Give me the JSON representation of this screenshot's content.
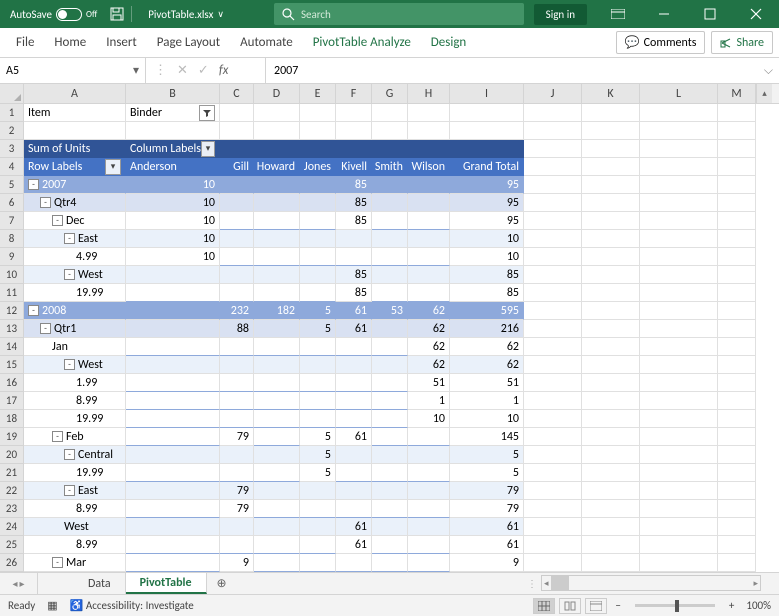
{
  "titlebar": {
    "autosave_label": "AutoSave",
    "autosave_state": "Off",
    "filename": "PivotTable.xlsx",
    "search_placeholder": "Search",
    "signin": "Sign in"
  },
  "ribbon": {
    "tabs": [
      "File",
      "Home",
      "Insert",
      "Page Layout",
      "Automate",
      "PivotTable Analyze",
      "Design"
    ],
    "comments": "Comments",
    "share": "Share"
  },
  "formulabar": {
    "namebox": "A5",
    "formula": "2007"
  },
  "columns": [
    "A",
    "B",
    "C",
    "D",
    "E",
    "F",
    "G",
    "H",
    "I",
    "J",
    "K",
    "L",
    "M"
  ],
  "pivot": {
    "filter_field": "Item",
    "filter_value": "Binder",
    "values_label": "Sum of Units",
    "col_label": "Column Labels",
    "row_label": "Row Labels",
    "col_headers": [
      "Anderson",
      "Gill",
      "Howard",
      "Jones",
      "Kivell",
      "Smith",
      "Wilson",
      "Grand Total"
    ]
  },
  "rows": [
    {
      "n": 1,
      "cells": [
        {
          "c": "A",
          "v": "Item"
        },
        {
          "c": "B",
          "v": "Binder",
          "filter": true
        }
      ]
    },
    {
      "n": 2,
      "cells": []
    },
    {
      "n": 3,
      "style": "hdr",
      "cells": [
        {
          "c": "A",
          "v": "Sum of Units",
          "cls": "hdr-dark"
        },
        {
          "c": "B",
          "v": "Column Labels",
          "cls": "hdr-dark",
          "dd": true
        }
      ],
      "fill": "hdr-dark",
      "fillcols": [
        "C",
        "D",
        "E",
        "F",
        "G",
        "H",
        "I"
      ]
    },
    {
      "n": 4,
      "style": "hdr2",
      "cells": [
        {
          "c": "A",
          "v": "Row Labels",
          "cls": "hdr-mid",
          "dd": true
        },
        {
          "c": "B",
          "v": "Anderson",
          "cls": "hdr-mid"
        },
        {
          "c": "C",
          "v": "Gill",
          "cls": "hdr-mid r"
        },
        {
          "c": "D",
          "v": "Howard",
          "cls": "hdr-mid r"
        },
        {
          "c": "E",
          "v": "Jones",
          "cls": "hdr-mid r"
        },
        {
          "c": "F",
          "v": "Kivell",
          "cls": "hdr-mid r"
        },
        {
          "c": "G",
          "v": "Smith",
          "cls": "hdr-mid r"
        },
        {
          "c": "H",
          "v": "Wilson",
          "cls": "hdr-mid r"
        },
        {
          "c": "I",
          "v": "Grand Total",
          "cls": "hdr-mid r"
        }
      ]
    },
    {
      "n": 5,
      "style": "year",
      "cells": [
        {
          "c": "A",
          "v": "2007",
          "exp": "-",
          "ind": 0
        },
        {
          "c": "B",
          "v": "10",
          "r": true
        },
        {
          "c": "F",
          "v": "85",
          "r": true
        },
        {
          "c": "I",
          "v": "95",
          "r": true
        }
      ],
      "fill": "year-row",
      "fillcols": [
        "C",
        "D",
        "E",
        "G",
        "H"
      ]
    },
    {
      "n": 6,
      "style": "lt1",
      "cells": [
        {
          "c": "A",
          "v": "Qtr4",
          "exp": "-",
          "ind": 1
        },
        {
          "c": "B",
          "v": "10",
          "r": true
        },
        {
          "c": "F",
          "v": "85",
          "r": true
        },
        {
          "c": "I",
          "v": "95",
          "r": true
        }
      ],
      "fillcols": [
        "C",
        "D",
        "E",
        "G",
        "H"
      ],
      "fill": "lt1"
    },
    {
      "n": 7,
      "cells": [
        {
          "c": "A",
          "v": "Dec",
          "exp": "-",
          "ind": 2
        },
        {
          "c": "B",
          "v": "10",
          "r": true
        },
        {
          "c": "F",
          "v": "85",
          "r": true
        },
        {
          "c": "I",
          "v": "95",
          "r": true
        }
      ],
      "pv": true
    },
    {
      "n": 8,
      "style": "lt2",
      "cells": [
        {
          "c": "A",
          "v": "East",
          "exp": "-",
          "ind": 3
        },
        {
          "c": "B",
          "v": "10",
          "r": true
        },
        {
          "c": "I",
          "v": "10",
          "r": true
        }
      ],
      "fillcols": [
        "C",
        "D",
        "E",
        "F",
        "G",
        "H"
      ],
      "fill": "lt2"
    },
    {
      "n": 9,
      "cells": [
        {
          "c": "A",
          "v": "4.99",
          "r": false,
          "ind": 4
        },
        {
          "c": "B",
          "v": "10",
          "r": true
        },
        {
          "c": "I",
          "v": "10",
          "r": true
        }
      ],
      "pv": true
    },
    {
      "n": 10,
      "style": "lt2",
      "cells": [
        {
          "c": "A",
          "v": "West",
          "exp": "-",
          "ind": 3
        },
        {
          "c": "F",
          "v": "85",
          "r": true
        },
        {
          "c": "I",
          "v": "85",
          "r": true
        }
      ],
      "fillcols": [
        "B",
        "C",
        "D",
        "E",
        "G",
        "H"
      ],
      "fill": "lt2"
    },
    {
      "n": 11,
      "cells": [
        {
          "c": "A",
          "v": "19.99",
          "ind": 4
        },
        {
          "c": "F",
          "v": "85",
          "r": true
        },
        {
          "c": "I",
          "v": "85",
          "r": true
        }
      ],
      "pv": true
    },
    {
      "n": 12,
      "style": "year",
      "cells": [
        {
          "c": "A",
          "v": "2008",
          "exp": "-",
          "ind": 0
        },
        {
          "c": "C",
          "v": "232",
          "r": true
        },
        {
          "c": "D",
          "v": "182",
          "r": true
        },
        {
          "c": "E",
          "v": "5",
          "r": true
        },
        {
          "c": "F",
          "v": "61",
          "r": true
        },
        {
          "c": "G",
          "v": "53",
          "r": true
        },
        {
          "c": "H",
          "v": "62",
          "r": true
        },
        {
          "c": "I",
          "v": "595",
          "r": true
        }
      ],
      "fill": "year-row",
      "fillcols": [
        "B"
      ]
    },
    {
      "n": 13,
      "style": "lt1",
      "cells": [
        {
          "c": "A",
          "v": "Qtr1",
          "exp": "-",
          "ind": 1
        },
        {
          "c": "C",
          "v": "88",
          "r": true
        },
        {
          "c": "E",
          "v": "5",
          "r": true
        },
        {
          "c": "F",
          "v": "61",
          "r": true
        },
        {
          "c": "H",
          "v": "62",
          "r": true
        },
        {
          "c": "I",
          "v": "216",
          "r": true
        }
      ],
      "fillcols": [
        "B",
        "D",
        "G"
      ],
      "fill": "lt1"
    },
    {
      "n": 14,
      "cells": [
        {
          "c": "A",
          "v": "Jan",
          "ind": 2
        },
        {
          "c": "H",
          "v": "62",
          "r": true
        },
        {
          "c": "I",
          "v": "62",
          "r": true
        }
      ],
      "pv": true
    },
    {
      "n": 15,
      "style": "lt2",
      "cells": [
        {
          "c": "A",
          "v": "West",
          "exp": "-",
          "ind": 3
        },
        {
          "c": "H",
          "v": "62",
          "r": true
        },
        {
          "c": "I",
          "v": "62",
          "r": true
        }
      ],
      "fillcols": [
        "B",
        "C",
        "D",
        "E",
        "F",
        "G"
      ],
      "fill": "lt2"
    },
    {
      "n": 16,
      "cells": [
        {
          "c": "A",
          "v": "1.99",
          "ind": 4
        },
        {
          "c": "H",
          "v": "51",
          "r": true
        },
        {
          "c": "I",
          "v": "51",
          "r": true
        }
      ],
      "pv": true
    },
    {
      "n": 17,
      "cells": [
        {
          "c": "A",
          "v": "8.99",
          "ind": 4
        },
        {
          "c": "H",
          "v": "1",
          "r": true
        },
        {
          "c": "I",
          "v": "1",
          "r": true
        }
      ],
      "pv": true
    },
    {
      "n": 18,
      "cells": [
        {
          "c": "A",
          "v": "19.99",
          "ind": 4
        },
        {
          "c": "H",
          "v": "10",
          "r": true
        },
        {
          "c": "I",
          "v": "10",
          "r": true
        }
      ],
      "pv": true
    },
    {
      "n": 19,
      "cells": [
        {
          "c": "A",
          "v": "Feb",
          "exp": "-",
          "ind": 2
        },
        {
          "c": "C",
          "v": "79",
          "r": true
        },
        {
          "c": "E",
          "v": "5",
          "r": true
        },
        {
          "c": "F",
          "v": "61",
          "r": true
        },
        {
          "c": "I",
          "v": "145",
          "r": true
        }
      ],
      "pv": true
    },
    {
      "n": 20,
      "style": "lt2",
      "cells": [
        {
          "c": "A",
          "v": "Central",
          "exp": "-",
          "ind": 3
        },
        {
          "c": "E",
          "v": "5",
          "r": true
        },
        {
          "c": "I",
          "v": "5",
          "r": true
        }
      ],
      "fillcols": [
        "B",
        "C",
        "D",
        "F",
        "G",
        "H"
      ],
      "fill": "lt2"
    },
    {
      "n": 21,
      "cells": [
        {
          "c": "A",
          "v": "19.99",
          "ind": 4
        },
        {
          "c": "E",
          "v": "5",
          "r": true
        },
        {
          "c": "I",
          "v": "5",
          "r": true
        }
      ],
      "pv": true
    },
    {
      "n": 22,
      "style": "lt2",
      "cells": [
        {
          "c": "A",
          "v": "East",
          "exp": "-",
          "ind": 3
        },
        {
          "c": "C",
          "v": "79",
          "r": true
        },
        {
          "c": "I",
          "v": "79",
          "r": true
        }
      ],
      "fillcols": [
        "B",
        "D",
        "E",
        "F",
        "G",
        "H"
      ],
      "fill": "lt2"
    },
    {
      "n": 23,
      "cells": [
        {
          "c": "A",
          "v": "8.99",
          "ind": 4
        },
        {
          "c": "C",
          "v": "79",
          "r": true
        },
        {
          "c": "I",
          "v": "79",
          "r": true
        }
      ],
      "pv": true
    },
    {
      "n": 24,
      "style": "lt2",
      "cells": [
        {
          "c": "A",
          "v": "West",
          "ind": 3
        },
        {
          "c": "F",
          "v": "61",
          "r": true
        },
        {
          "c": "I",
          "v": "61",
          "r": true
        }
      ],
      "fillcols": [
        "B",
        "C",
        "D",
        "E",
        "G",
        "H"
      ],
      "fill": "lt2"
    },
    {
      "n": 25,
      "cells": [
        {
          "c": "A",
          "v": "8.99",
          "ind": 4
        },
        {
          "c": "F",
          "v": "61",
          "r": true
        },
        {
          "c": "I",
          "v": "61",
          "r": true
        }
      ],
      "pv": true
    },
    {
      "n": 26,
      "cells": [
        {
          "c": "A",
          "v": "Mar",
          "exp": "-",
          "ind": 2
        },
        {
          "c": "C",
          "v": "9",
          "r": true
        },
        {
          "c": "I",
          "v": "9",
          "r": true
        }
      ],
      "pv": true
    }
  ],
  "sheets": {
    "tabs": [
      "Data",
      "PivotTable"
    ],
    "active": 1
  },
  "statusbar": {
    "ready": "Ready",
    "accessibility": "Accessibility: Investigate",
    "zoom": "100%"
  }
}
